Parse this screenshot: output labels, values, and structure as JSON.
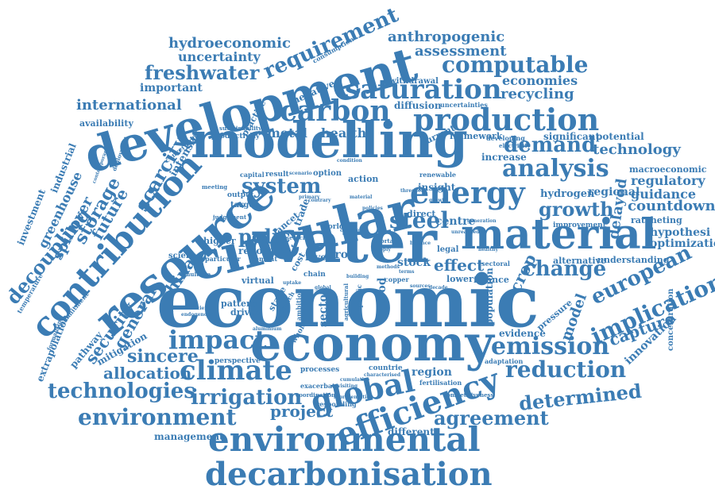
{
  "style": {
    "color": "#3b7cb4",
    "background": "#ffffff"
  },
  "words": [
    "economic",
    "water",
    "circular",
    "economy",
    "modelling",
    "development",
    "resource",
    "material",
    "contribution",
    "decarbonisation",
    "environmental",
    "efficiency",
    "production",
    "energy",
    "analysis",
    "saturation",
    "carbon",
    "climate",
    "global",
    "impact",
    "emission",
    "reduction",
    "computable",
    "steel",
    "policy",
    "system",
    "implication",
    "european",
    "demand",
    "change",
    "irrigation",
    "technologies",
    "environment",
    "agreement",
    "determined",
    "requirement",
    "scarcity",
    "freshwater",
    "anthropogenic",
    "assessment",
    "recycling",
    "economies",
    "international",
    "growth",
    "technology",
    "countdown",
    "hydroeconomic",
    "uncertainty",
    "decoupling",
    "security",
    "general",
    "storage",
    "future",
    "spillover",
    "china",
    "sincere",
    "allocation",
    "project",
    "capture",
    "innovation",
    "crop",
    "model",
    "effect",
    "delayed",
    "potential",
    "regional",
    "hydrogen",
    "guidance",
    "regulatory",
    "macroeconomic",
    "ratcheting",
    "hypothesi",
    "optimization",
    "health",
    "metal",
    "important",
    "availability",
    "intensity",
    "mitigation",
    "pathway",
    "extrapolation",
    "greenhouse",
    "industrial",
    "investment",
    "management",
    "different",
    "region",
    "evidence",
    "population",
    "food",
    "sector",
    "stock",
    "iron",
    "centre",
    "insight",
    "diffusion",
    "withdrawal",
    "negative",
    "practice",
    "significant",
    "increase",
    "framework",
    "current",
    "concentration",
    "alternative",
    "understanding",
    "improvement",
    "finance",
    "lower",
    "legal",
    "direct",
    "trade",
    "action",
    "option",
    "result",
    "level",
    "report",
    "virtual",
    "driven",
    "pattern",
    "stage",
    "world",
    "lancet",
    "higher",
    "science",
    "perspective",
    "processes",
    "countrie",
    "responding",
    "fertilisation",
    "adaptation",
    "competitiveness",
    "exacerbate",
    "coordination",
    "cost",
    "output",
    "target",
    "capital",
    "productivity",
    "sustainability",
    "consumption",
    "uncertainties",
    "developing",
    "electricity",
    "temperature",
    "commitment",
    "converging",
    "deployment",
    "renewable",
    "particular",
    "cement",
    "copper",
    "shortage",
    "approach",
    "agricultural",
    "chain",
    "pressure",
    "sectoral",
    "meeting",
    "judgement",
    "ambition",
    "specific",
    "whole",
    "research",
    "green",
    "multiple",
    "insufficient",
    "formalising",
    "endogenous",
    "contemporary",
    "representation",
    "characterised",
    "revisiting",
    "scenario",
    "condition",
    "cumulative",
    "healthy",
    "unrealised",
    "threshold",
    "contrary",
    "material",
    "uptake",
    "primary",
    "terms",
    "methods",
    "building",
    "aluminium",
    "decade",
    "sources",
    "generation",
    "balance",
    "supply",
    "policies",
    "change",
    "global",
    "growth"
  ]
}
